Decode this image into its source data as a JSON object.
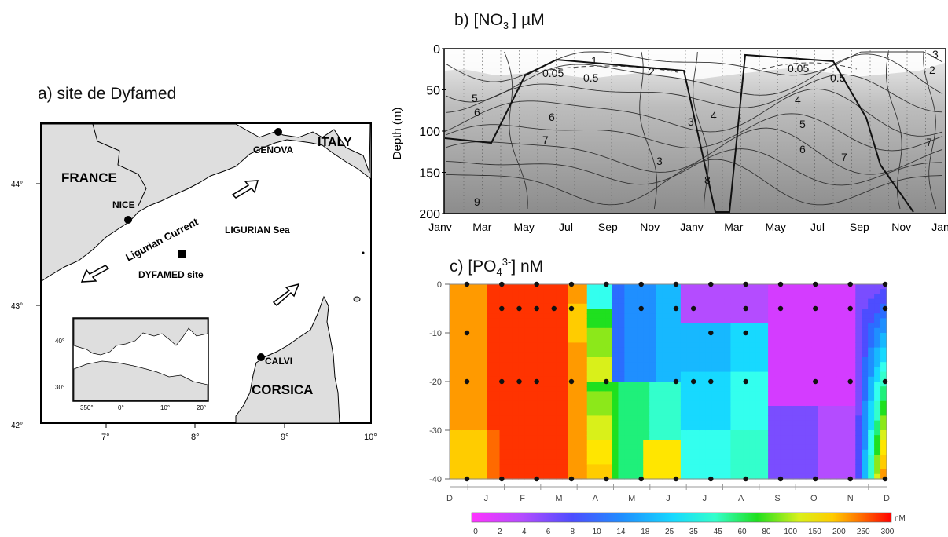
{
  "panel_a": {
    "title": "a) site de Dyfamed",
    "labels": {
      "france": "FRANCE",
      "italy": "ITALY",
      "genova": "GENOVA",
      "nice": "NICE",
      "calvi": "CALVI",
      "corsica": "CORSICA",
      "ligurian_sea": "LIGURIAN Sea",
      "ligurian_current": "Ligurian Current",
      "dyfamed": "DYFAMED site"
    },
    "lat_ticks": [
      "44°",
      "43°",
      "42°"
    ],
    "lon_ticks": [
      "7°",
      "8°",
      "9°",
      "10°"
    ],
    "inset": {
      "lat_ticks": [
        "40°",
        "30°"
      ],
      "lon_ticks": [
        "350°",
        "0°",
        "10°",
        "20°"
      ]
    }
  },
  "chart_data": [
    {
      "type": "heatmap",
      "title": "b) [NO3-] µM",
      "ylabel": "Depth (m)",
      "xlabel": "",
      "x_ticks": [
        "Janv",
        "Mar",
        "May",
        "Jul",
        "Sep",
        "Nov",
        "Janv",
        "Mar",
        "May",
        "Jul",
        "Sep",
        "Nov",
        "Janv"
      ],
      "y_ticks": [
        "0",
        "50",
        "100",
        "150",
        "200"
      ],
      "ylim": [
        200,
        0
      ],
      "contour_labels": [
        "0.05",
        "0.5",
        "1",
        "2",
        "3",
        "4",
        "5",
        "6",
        "7",
        "8",
        "9"
      ]
    },
    {
      "type": "heatmap",
      "title": "c) [PO43-] nM",
      "x_ticks": [
        "D",
        "J",
        "F",
        "M",
        "A",
        "M",
        "J",
        "J",
        "A",
        "S",
        "O",
        "N",
        "D"
      ],
      "y_ticks": [
        "0",
        "-10",
        "-20",
        "-30",
        "-40"
      ],
      "ylim": [
        -40,
        0
      ],
      "colorbar": {
        "unit": "nM",
        "ticks": [
          "0",
          "2",
          "4",
          "6",
          "8",
          "10",
          "14",
          "18",
          "25",
          "35",
          "45",
          "60",
          "80",
          "100",
          "150",
          "200",
          "250",
          "300"
        ]
      }
    }
  ]
}
